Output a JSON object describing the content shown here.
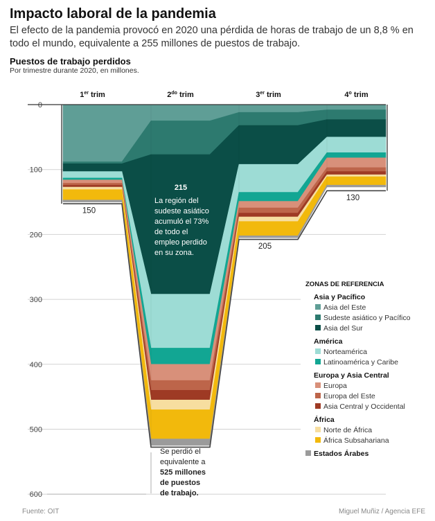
{
  "header": {
    "title": "Impacto laboral de la pandemia",
    "subtitle": "El efecto de la pandemia provocó en 2020 una pérdida de horas de trabajo de un 8,8 % en todo el mundo, equivalente a 255 millones de puestos de trabajo."
  },
  "chart_data": {
    "type": "area",
    "title": "Puestos de trabajo perdidos",
    "subtitle": "Por trimestre durante 2020, en millones.",
    "categories": [
      {
        "base": "1",
        "sup": "er",
        "rest": " trim"
      },
      {
        "base": "2",
        "sup": "do",
        "rest": " trim"
      },
      {
        "base": "3",
        "sup": "er",
        "rest": " trim"
      },
      {
        "base": "4",
        "sup": "o",
        "rest": " trim"
      }
    ],
    "y_ticks": [
      "0",
      "100",
      "200",
      "300",
      "400",
      "500",
      "600"
    ],
    "ylim": [
      0,
      600
    ],
    "y_inverted": true,
    "grid": true,
    "totals": [
      150,
      525,
      205,
      130
    ],
    "total_labels": [
      "150",
      "",
      "205",
      "130"
    ],
    "series": [
      {
        "name": "Asia del Este",
        "group": "Asia y Pacífico",
        "color": "#5f9e96",
        "values": [
          88,
          25,
          12,
          8
        ]
      },
      {
        "name": "Sudeste asiático y Pacífico",
        "group": "Asia y Pacífico",
        "color": "#2d7a6f",
        "values": [
          3,
          52,
          20,
          15
        ]
      },
      {
        "name": "Asia del Sur",
        "group": "Asia y Pacífico",
        "color": "#0b4e47",
        "values": [
          12,
          215,
          60,
          27
        ]
      },
      {
        "name": "Norteamérica",
        "group": "América",
        "color": "#9ddcd5",
        "values": [
          10,
          83,
          43,
          24
        ]
      },
      {
        "name": "Latinoamérica y Caribe",
        "group": "América",
        "color": "#12a693",
        "values": [
          3,
          25,
          14,
          8
        ]
      },
      {
        "name": "Europa",
        "group": "Europa y Asia Central",
        "color": "#d8907a",
        "values": [
          5,
          25,
          10,
          15
        ]
      },
      {
        "name": "Europa del Este",
        "group": "Europa y Asia Central",
        "color": "#bd654a",
        "values": [
          3,
          15,
          8,
          6
        ]
      },
      {
        "name": "Asia Central y Occidental",
        "group": "Europa y Asia Central",
        "color": "#9e3a24",
        "values": [
          3,
          15,
          6,
          5
        ]
      },
      {
        "name": "Norte de África",
        "group": "África",
        "color": "#f7dea0",
        "values": [
          4,
          15,
          7,
          3
        ]
      },
      {
        "name": "África Subsahariana",
        "group": "África",
        "color": "#f2b90c",
        "values": [
          16,
          45,
          22,
          13
        ]
      },
      {
        "name": "Estados Árabes",
        "group": "Estados Árabes",
        "color": "#9b9b9b",
        "values": [
          3,
          10,
          3,
          3
        ]
      }
    ],
    "legend": {
      "title": "ZONAS DE REFERENCIA",
      "placement": "bottom-right",
      "groups": [
        {
          "name": "Asia y Pacífico",
          "items": [
            "Asia del Este",
            "Sudeste asiático y Pacífico",
            "Asia del Sur"
          ]
        },
        {
          "name": "América",
          "items": [
            "Norteamérica",
            "Latinoamérica y Caribe"
          ]
        },
        {
          "name": "Europa y Asia Central",
          "items": [
            "Europa",
            "Europa del Este",
            "Asia Central y Occidental"
          ]
        },
        {
          "name": "África",
          "items": [
            "Norte de África",
            "África Subsahariana"
          ]
        },
        {
          "name": "Estados Árabes",
          "items": []
        }
      ]
    },
    "annotations": {
      "asia_sur_value": "215",
      "asia_sur_text": [
        "La región del",
        "sudeste asiático",
        "acumuló el 73%",
        "de todo el",
        "empleo perdido",
        "en su zona."
      ],
      "total_text": [
        {
          "text": "Se perdió el",
          "bold": false
        },
        {
          "text": "equivalente a",
          "bold": false
        },
        {
          "text": "525 millones",
          "bold": true
        },
        {
          "text": "de puestos",
          "bold": true
        },
        {
          "text": "de trabajo.",
          "bold": true
        }
      ]
    }
  },
  "footer": {
    "source": "Fuente: OIT",
    "credit": "Miguel Muñiz / Agencia EFE"
  }
}
